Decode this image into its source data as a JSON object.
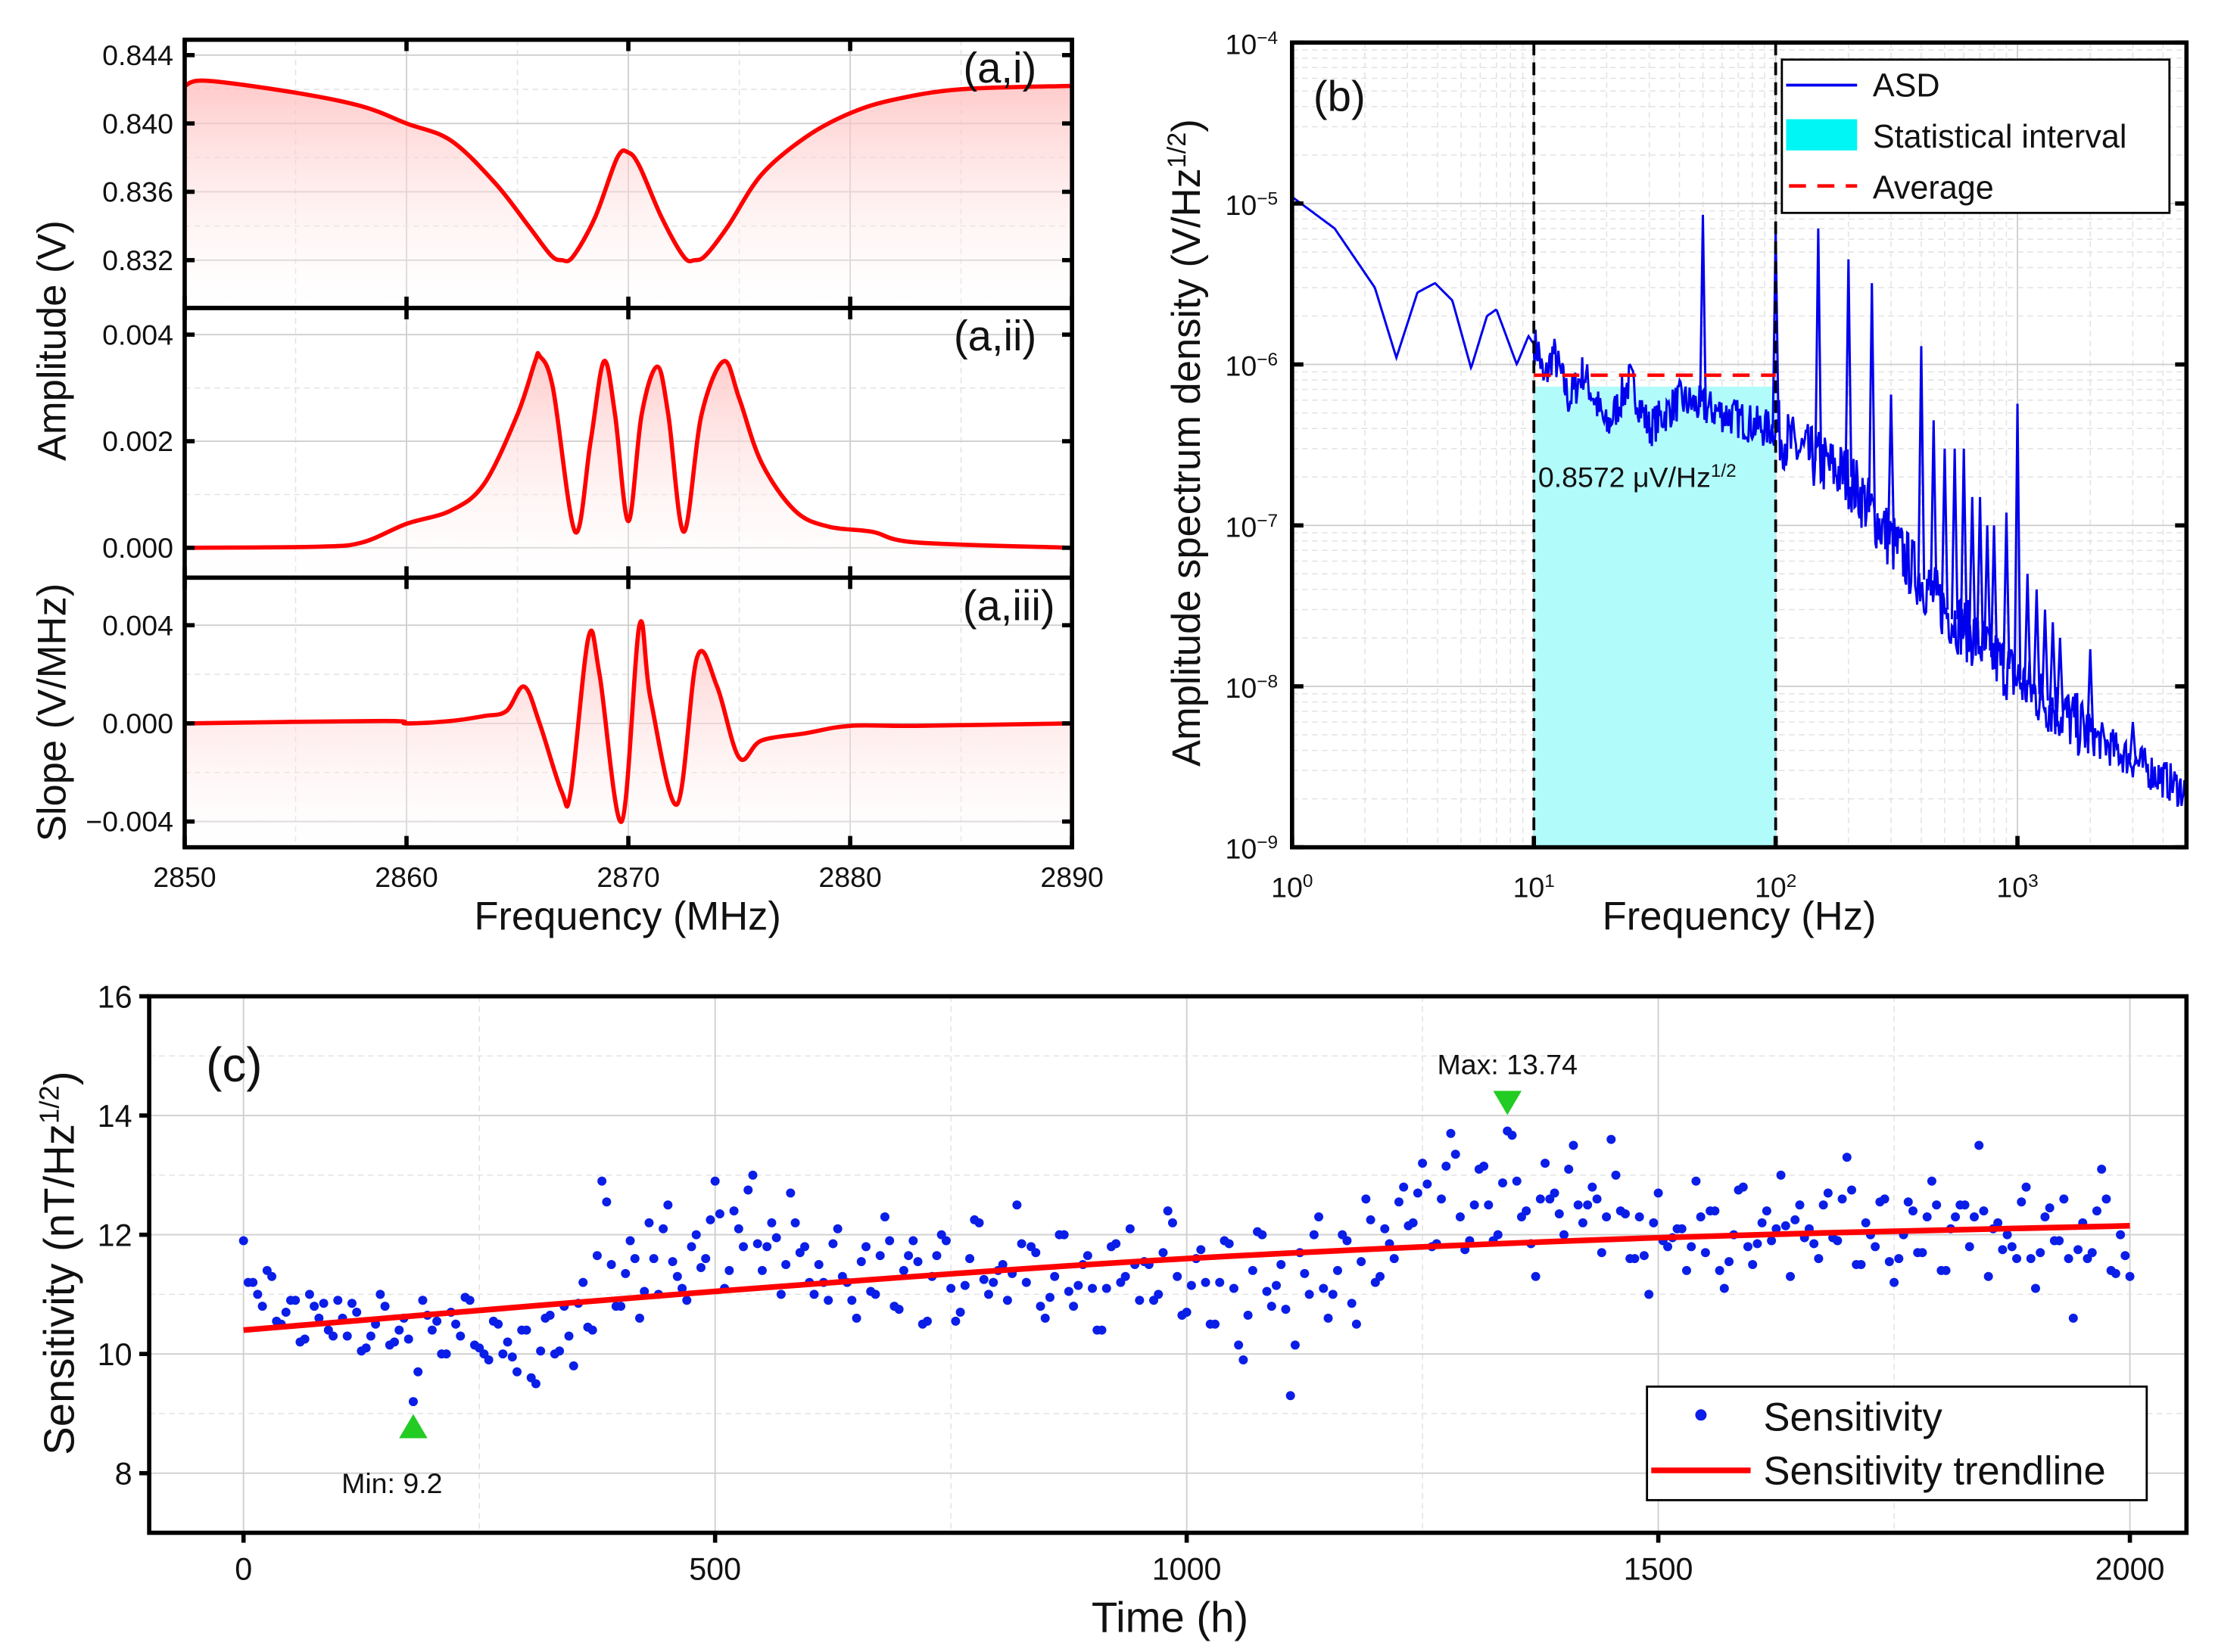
{
  "chart_data": [
    {
      "id": "a",
      "type": "line",
      "xlabel": "Frequency (MHz)",
      "xlim": [
        2850,
        2890
      ],
      "x_ticks": [
        2850,
        2860,
        2870,
        2880,
        2890
      ],
      "ylabel_top": "Amplitude (V)",
      "ylabel_bottom": "Slope (V/MHz)",
      "color": "#ff0000",
      "subplots": [
        {
          "label": "(a,i)",
          "ylim": [
            0.8292,
            0.8449
          ],
          "y_ticks": [
            0.832,
            0.836,
            0.84,
            0.844
          ],
          "y_tick_labels": [
            "0.832",
            "0.836",
            "0.840",
            "0.844"
          ],
          "points": [
            [
              2850,
              0.8422
            ],
            [
              2851,
              0.8425
            ],
            [
              2855,
              0.8418
            ],
            [
              2858,
              0.841
            ],
            [
              2860,
              0.84
            ],
            [
              2862,
              0.839
            ],
            [
              2864,
              0.8365
            ],
            [
              2865.5,
              0.834
            ],
            [
              2866.5,
              0.8323
            ],
            [
              2867,
              0.832
            ],
            [
              2867.5,
              0.8322
            ],
            [
              2868.5,
              0.8345
            ],
            [
              2869.5,
              0.838
            ],
            [
              2870,
              0.8383
            ],
            [
              2870.5,
              0.8375
            ],
            [
              2871.5,
              0.8345
            ],
            [
              2872.5,
              0.8322
            ],
            [
              2873,
              0.832
            ],
            [
              2873.5,
              0.8323
            ],
            [
              2874.5,
              0.834
            ],
            [
              2876,
              0.837
            ],
            [
              2878,
              0.8392
            ],
            [
              2880,
              0.8406
            ],
            [
              2882,
              0.8414
            ],
            [
              2885,
              0.842
            ],
            [
              2890,
              0.8422
            ]
          ]
        },
        {
          "label": "(a,ii)",
          "ylim": [
            -0.00056,
            0.0045
          ],
          "y_ticks": [
            0,
            0.002,
            0.004
          ],
          "y_tick_labels": [
            "0.000",
            "0.002",
            "0.004"
          ],
          "points": [
            [
              2850,
              0
            ],
            [
              2856,
              2e-05
            ],
            [
              2858,
              0.0001
            ],
            [
              2860,
              0.00045
            ],
            [
              2862,
              0.0007
            ],
            [
              2863.5,
              0.0012
            ],
            [
              2865,
              0.0025
            ],
            [
              2865.8,
              0.0035
            ],
            [
              2866,
              0.0036
            ],
            [
              2866.6,
              0.003
            ],
            [
              2867.6,
              0.0003
            ],
            [
              2868.3,
              0.002
            ],
            [
              2868.9,
              0.0035
            ],
            [
              2869.4,
              0.0025
            ],
            [
              2870,
              0.0005
            ],
            [
              2870.6,
              0.0025
            ],
            [
              2871.3,
              0.0034
            ],
            [
              2871.8,
              0.0025
            ],
            [
              2872.5,
              0.0003
            ],
            [
              2873.3,
              0.0025
            ],
            [
              2874.3,
              0.0035
            ],
            [
              2875,
              0.0028
            ],
            [
              2876,
              0.0016
            ],
            [
              2877.5,
              0.0007
            ],
            [
              2879,
              0.0004
            ],
            [
              2881,
              0.0003
            ],
            [
              2883,
              0.0001
            ],
            [
              2890,
              0
            ]
          ]
        },
        {
          "label": "(a,iii)",
          "ylim": [
            -0.00505,
            0.00594
          ],
          "y_ticks": [
            -0.004,
            0,
            0.004
          ],
          "y_tick_labels": [
            "−0.004",
            "0.000",
            "0.004"
          ],
          "points": [
            [
              2850,
              0
            ],
            [
              2859,
              0.0001
            ],
            [
              2860,
              0
            ],
            [
              2862,
              0.0001
            ],
            [
              2863.5,
              0.0003
            ],
            [
              2864.5,
              0.0005
            ],
            [
              2865.3,
              0.0015
            ],
            [
              2866,
              0
            ],
            [
              2867,
              -0.0028
            ],
            [
              2867.4,
              -0.0028
            ],
            [
              2868.2,
              0.0035
            ],
            [
              2868.7,
              0.002
            ],
            [
              2869.7,
              -0.004
            ],
            [
              2870.5,
              0.004
            ],
            [
              2871,
              0.001
            ],
            [
              2872.2,
              -0.0033
            ],
            [
              2873.1,
              0.0027
            ],
            [
              2874,
              0.0015
            ],
            [
              2875,
              -0.0014
            ],
            [
              2876,
              -0.0007
            ],
            [
              2878,
              -0.0004
            ],
            [
              2880,
              -0.0001
            ],
            [
              2883,
              -0.0001
            ],
            [
              2890,
              0
            ]
          ]
        }
      ]
    },
    {
      "id": "b",
      "type": "line",
      "label": "(b)",
      "xscale": "log",
      "yscale": "log",
      "xlim": [
        1,
        5000
      ],
      "ylim": [
        1e-09,
        0.0001
      ],
      "x_tick_exponents": [
        0,
        1,
        2,
        3
      ],
      "y_tick_exponents": [
        -9,
        -8,
        -7,
        -6,
        -5,
        -4
      ],
      "tick_base": "10",
      "xlabel": "Frequency (Hz)",
      "ylabel": "Amplitude spectrum density (V/Hz",
      "ylabel_sup": "1/2",
      "ylabel_end": ")",
      "legend": {
        "position": "top-right",
        "entries": [
          "ASD",
          "Statistical interval",
          "Average"
        ]
      },
      "asd_color": "#0000ee",
      "interval_color": "#b2fbfb",
      "average_color": "#ff0000",
      "asd_baseline": [
        [
          1,
          1.1e-05
        ],
        [
          1.5,
          7e-06
        ],
        [
          2.2,
          3e-06
        ],
        [
          2.7,
          1.1e-06
        ],
        [
          3.3,
          2.8e-06
        ],
        [
          3.9,
          3.2e-06
        ],
        [
          4.6,
          2.5e-06
        ],
        [
          5.5,
          9.5e-07
        ],
        [
          6.4,
          2e-06
        ],
        [
          7,
          2.2e-06
        ],
        [
          8.5,
          1e-06
        ],
        [
          9.5,
          1.5e-06
        ],
        [
          10.5,
          1.2e-06
        ],
        [
          11,
          7.5e-07
        ],
        [
          12,
          1.2e-06
        ],
        [
          14,
          6e-07
        ],
        [
          16,
          9e-07
        ],
        [
          20,
          4e-07
        ],
        [
          25,
          8e-07
        ],
        [
          30,
          4e-07
        ],
        [
          40,
          6e-07
        ],
        [
          60,
          5e-07
        ],
        [
          90,
          4e-07
        ],
        [
          100,
          4e-07
        ],
        [
          120,
          3e-07
        ],
        [
          200,
          2e-07
        ],
        [
          300,
          8e-08
        ],
        [
          500,
          3e-08
        ],
        [
          1000,
          1.1e-08
        ],
        [
          2000,
          5e-09
        ],
        [
          5000,
          2.2e-09
        ]
      ],
      "asd_peaks": [
        [
          50,
          8.5e-06
        ],
        [
          100,
          7e-06
        ],
        [
          150,
          7e-06
        ],
        [
          200,
          4.5e-06
        ],
        [
          250,
          3.2e-06
        ],
        [
          300,
          6.5e-07
        ],
        [
          400,
          1.3e-06
        ],
        [
          450,
          4.5e-07
        ],
        [
          500,
          3e-07
        ],
        [
          550,
          3e-07
        ],
        [
          600,
          3e-07
        ],
        [
          650,
          1.5e-07
        ],
        [
          700,
          1.5e-07
        ],
        [
          750,
          1e-07
        ],
        [
          800,
          1e-07
        ],
        [
          900,
          1.2e-07
        ],
        [
          1000,
          5.7e-07
        ],
        [
          1100,
          5e-08
        ],
        [
          1200,
          4e-08
        ],
        [
          1300,
          3e-08
        ],
        [
          1400,
          2.5e-08
        ],
        [
          1500,
          2e-08
        ],
        [
          2000,
          1.7e-08
        ],
        [
          3000,
          6e-09
        ]
      ],
      "interval": [
        10,
        100
      ],
      "average": 8.572e-07,
      "average_label": "0.8572 μV/Hz",
      "average_label_sup": "1/2"
    },
    {
      "id": "c",
      "type": "scatter",
      "label": "(c)",
      "xlabel": "Time (h)",
      "ylabel": "Sensitivity (nT/Hz",
      "ylabel_sup": "1/2",
      "ylabel_end": ")",
      "xlim": [
        -100,
        2060
      ],
      "ylim": [
        7,
        16
      ],
      "x_ticks": [
        0,
        500,
        1000,
        1500,
        2000
      ],
      "y_ticks": [
        8,
        10,
        12,
        14,
        16
      ],
      "x_step": 10,
      "point_color": "#0a1ee8",
      "trend_color": "#ff0000",
      "marker_color": "#22cc22",
      "sensitivity": [
        11.9,
        11.2,
        10.8,
        11.3,
        10.5,
        10.9,
        10.2,
        11.0,
        10.6,
        10.4,
        10.9,
        10.3,
        10.7,
        10.1,
        10.5,
        10.8,
        10.2,
        10.6,
        9.2,
        10.9,
        10.4,
        10.0,
        10.7,
        10.3,
        10.9,
        10.1,
        9.9,
        10.5,
        10.2,
        9.7,
        10.4,
        9.5,
        10.6,
        10.0,
        10.8,
        9.8,
        11.2,
        10.4,
        12.9,
        11.5,
        10.8,
        11.9,
        10.6,
        12.2,
        11.0,
        12.5,
        11.3,
        10.9,
        12.0,
        11.6,
        12.9,
        11.1,
        12.4,
        11.8,
        13.0,
        11.4,
        12.2,
        11.0,
        12.7,
        11.7,
        11.2,
        11.5,
        10.9,
        12.1,
        11.2,
        10.6,
        11.8,
        11.0,
        12.3,
        10.8,
        11.4,
        11.9,
        10.5,
        11.3,
        12.0,
        11.1,
        10.7,
        11.6,
        12.2,
        11.0,
        11.4,
        10.9,
        12.5,
        11.2,
        11.7,
        10.6,
        11.3,
        12.0,
        10.8,
        11.5,
        11.1,
        10.4,
        11.8,
        11.2,
        12.1,
        10.9,
        11.5,
        11.0,
        12.4,
        11.3,
        10.7,
        11.6,
        11.2,
        10.5,
        11.9,
        11.1,
        9.9,
        11.4,
        12.0,
        10.8,
        11.5,
        9.3,
        11.7,
        11.0,
        12.3,
        10.6,
        11.4,
        11.9,
        10.5,
        12.6,
        11.2,
        12.1,
        11.6,
        12.8,
        12.2,
        13.2,
        11.8,
        12.6,
        13.7,
        12.3,
        11.9,
        13.1,
        12.5,
        12.0,
        13.74,
        12.9,
        12.4,
        11.3,
        13.2,
        12.7,
        12.0,
        13.5,
        12.2,
        12.8,
        11.7,
        13.6,
        12.4,
        11.6,
        12.3,
        11.0,
        12.7,
        11.8,
        12.1,
        11.4,
        12.9,
        11.7,
        12.4,
        11.1,
        12.0,
        12.8,
        11.5,
        12.2,
        11.9,
        13.0,
        11.3,
        12.5,
        12.1,
        11.6,
        12.7,
        11.9,
        13.3,
        11.5,
        12.2,
        11.8,
        12.6,
        11.2,
        12.0,
        12.4,
        11.7,
        12.9,
        11.4,
        12.1,
        12.5,
        11.8,
        13.5,
        11.3,
        12.2,
        12.0,
        11.6,
        12.8,
        11.1,
        12.3,
        11.9,
        12.6,
        10.6,
        12.2,
        11.7,
        13.1,
        11.4,
        12.0,
        11.3
      ],
      "trendline": [
        [
          0,
          10.4
        ],
        [
          500,
          11.05
        ],
        [
          1000,
          11.6
        ],
        [
          1500,
          11.95
        ],
        [
          2000,
          12.15
        ]
      ],
      "max": {
        "x": 1340,
        "y": 13.74,
        "label": "Max: 13.74"
      },
      "min": {
        "x": 180,
        "y": 9.2,
        "label": "Min: 9.2"
      },
      "legend": {
        "position": "bottom-right",
        "entries": [
          "Sensitivity",
          "Sensitivity trendline"
        ]
      }
    }
  ]
}
